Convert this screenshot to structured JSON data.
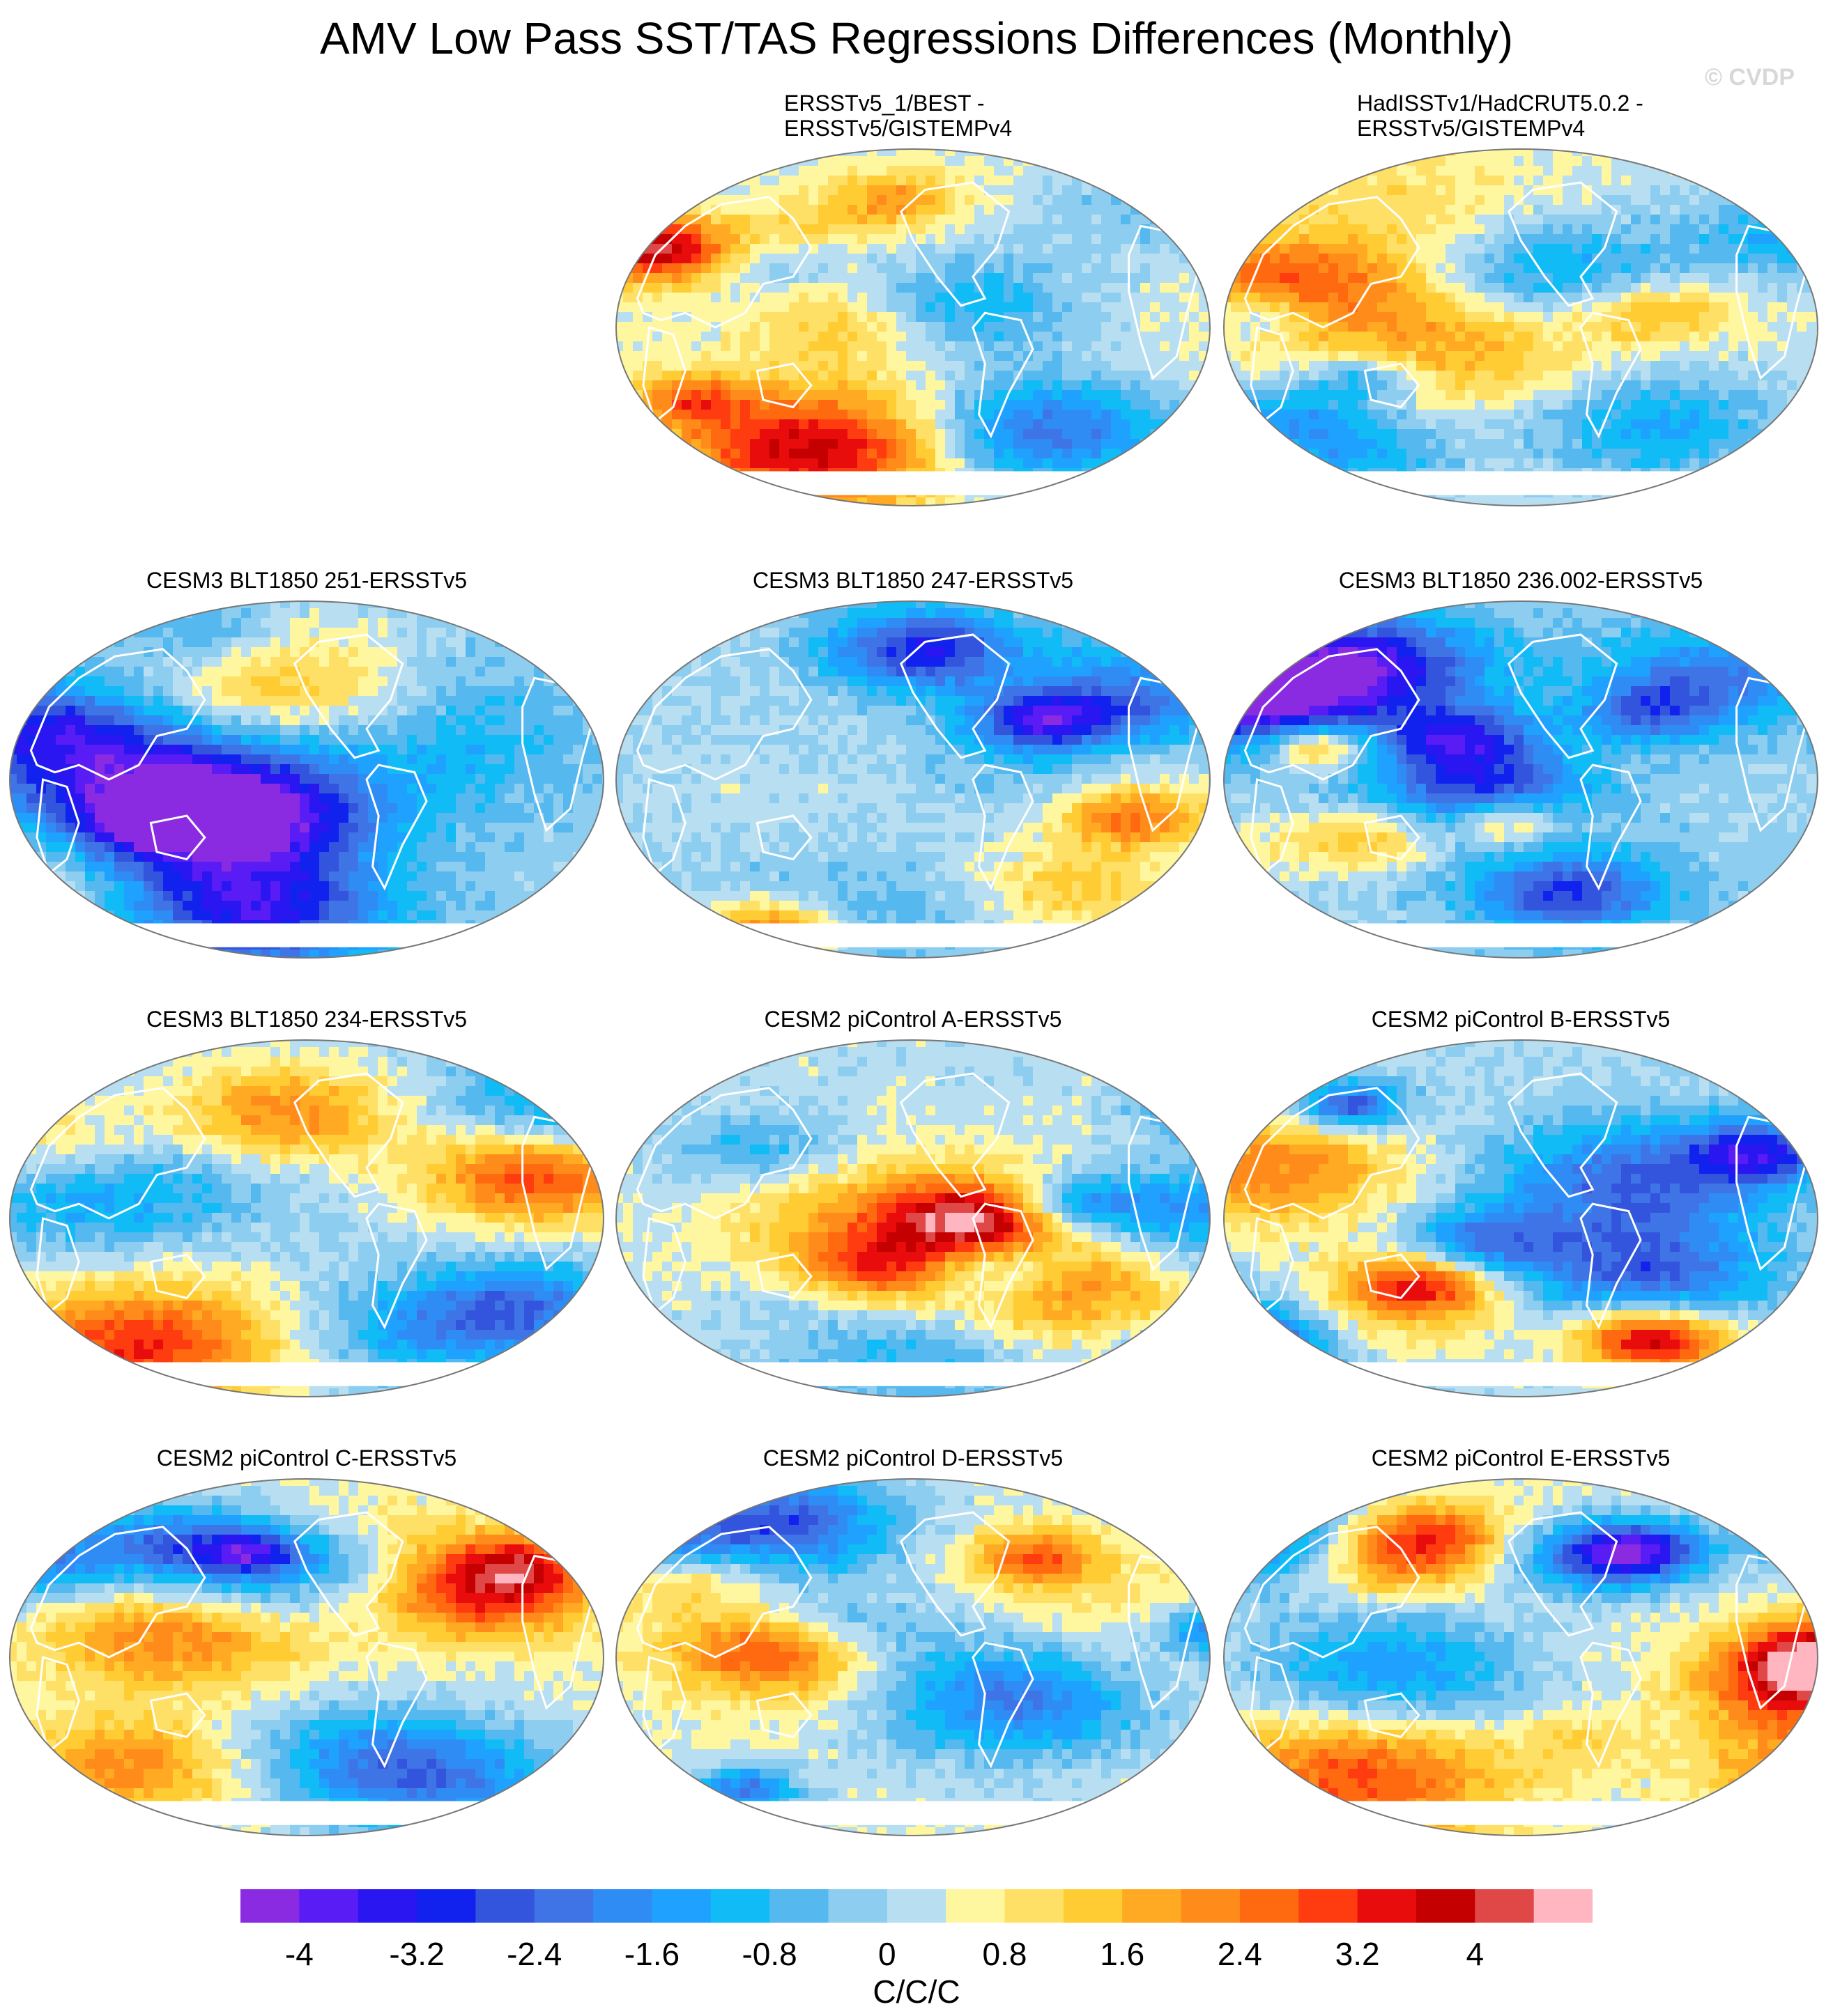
{
  "title": "AMV Low Pass SST/TAS Regressions Differences (Monthly)",
  "watermark": "© CVDP",
  "panels": [
    {
      "id": "p1",
      "title": "ERSSTv5_1/BEST -\nERSSTv5/GISTEMPv4",
      "col": 1,
      "row": 0,
      "two_line": true,
      "seed": 11,
      "bias": 0.2
    },
    {
      "id": "p2",
      "title": "HadISSTv1/HadCRUT5.0.2 -\nERSSTv5/GISTEMPv4",
      "col": 2,
      "row": 0,
      "two_line": true,
      "seed": 23,
      "bias": 0.1
    },
    {
      "id": "p3",
      "title": "CESM3 BLT1850 251-ERSSTv5",
      "col": 0,
      "row": 1,
      "seed": 37,
      "bias": -0.3
    },
    {
      "id": "p4",
      "title": "CESM3 BLT1850 247-ERSSTv5",
      "col": 1,
      "row": 1,
      "seed": 41,
      "bias": -0.2
    },
    {
      "id": "p5",
      "title": "CESM3 BLT1850 236.002-ERSSTv5",
      "col": 2,
      "row": 1,
      "seed": 53,
      "bias": -0.3
    },
    {
      "id": "p6",
      "title": "CESM3 BLT1850 234-ERSSTv5",
      "col": 0,
      "row": 2,
      "seed": 61,
      "bias": -0.2
    },
    {
      "id": "p7",
      "title": "CESM2 piControl A-ERSSTv5",
      "col": 1,
      "row": 2,
      "seed": 71,
      "bias": 0.0
    },
    {
      "id": "p8",
      "title": "CESM2 piControl B-ERSSTv5",
      "col": 2,
      "row": 2,
      "seed": 83,
      "bias": -0.1
    },
    {
      "id": "p9",
      "title": "CESM2 piControl C-ERSSTv5",
      "col": 0,
      "row": 3,
      "seed": 97,
      "bias": 0.2
    },
    {
      "id": "p10",
      "title": "CESM2 piControl D-ERSSTv5",
      "col": 1,
      "row": 3,
      "seed": 101,
      "bias": 0.1
    },
    {
      "id": "p11",
      "title": "CESM2 piControl E-ERSSTv5",
      "col": 2,
      "row": 3,
      "seed": 113,
      "bias": 0.2
    }
  ],
  "colorbar": {
    "units": "C/C/C",
    "levels": [
      -4.4,
      -4,
      -3.6,
      -3.2,
      -2.8,
      -2.4,
      -2,
      -1.6,
      -1.2,
      -0.8,
      -0.4,
      0,
      0.4,
      0.8,
      1.2,
      1.6,
      2,
      2.4,
      2.8,
      3.2,
      3.6,
      4,
      4.4
    ],
    "labels": [
      "-4",
      "-3.2",
      "-2.4",
      "-1.6",
      "-0.8",
      "0",
      "0.8",
      "1.6",
      "2.4",
      "3.2",
      "4"
    ],
    "colors": [
      "#8a2be2",
      "#5a1cf5",
      "#2a16f0",
      "#1122ee",
      "#3355dd",
      "#3f74e6",
      "#2f8cf5",
      "#1fa2ff",
      "#11bbf5",
      "#55b8ee",
      "#8ccdf0",
      "#b8def2",
      "#fff7a0",
      "#ffe066",
      "#ffcc33",
      "#ffaa22",
      "#ff8c1a",
      "#ff6a10",
      "#ff3b10",
      "#e80c0c",
      "#c40000",
      "#e04848",
      "#ffb6c0"
    ]
  }
}
